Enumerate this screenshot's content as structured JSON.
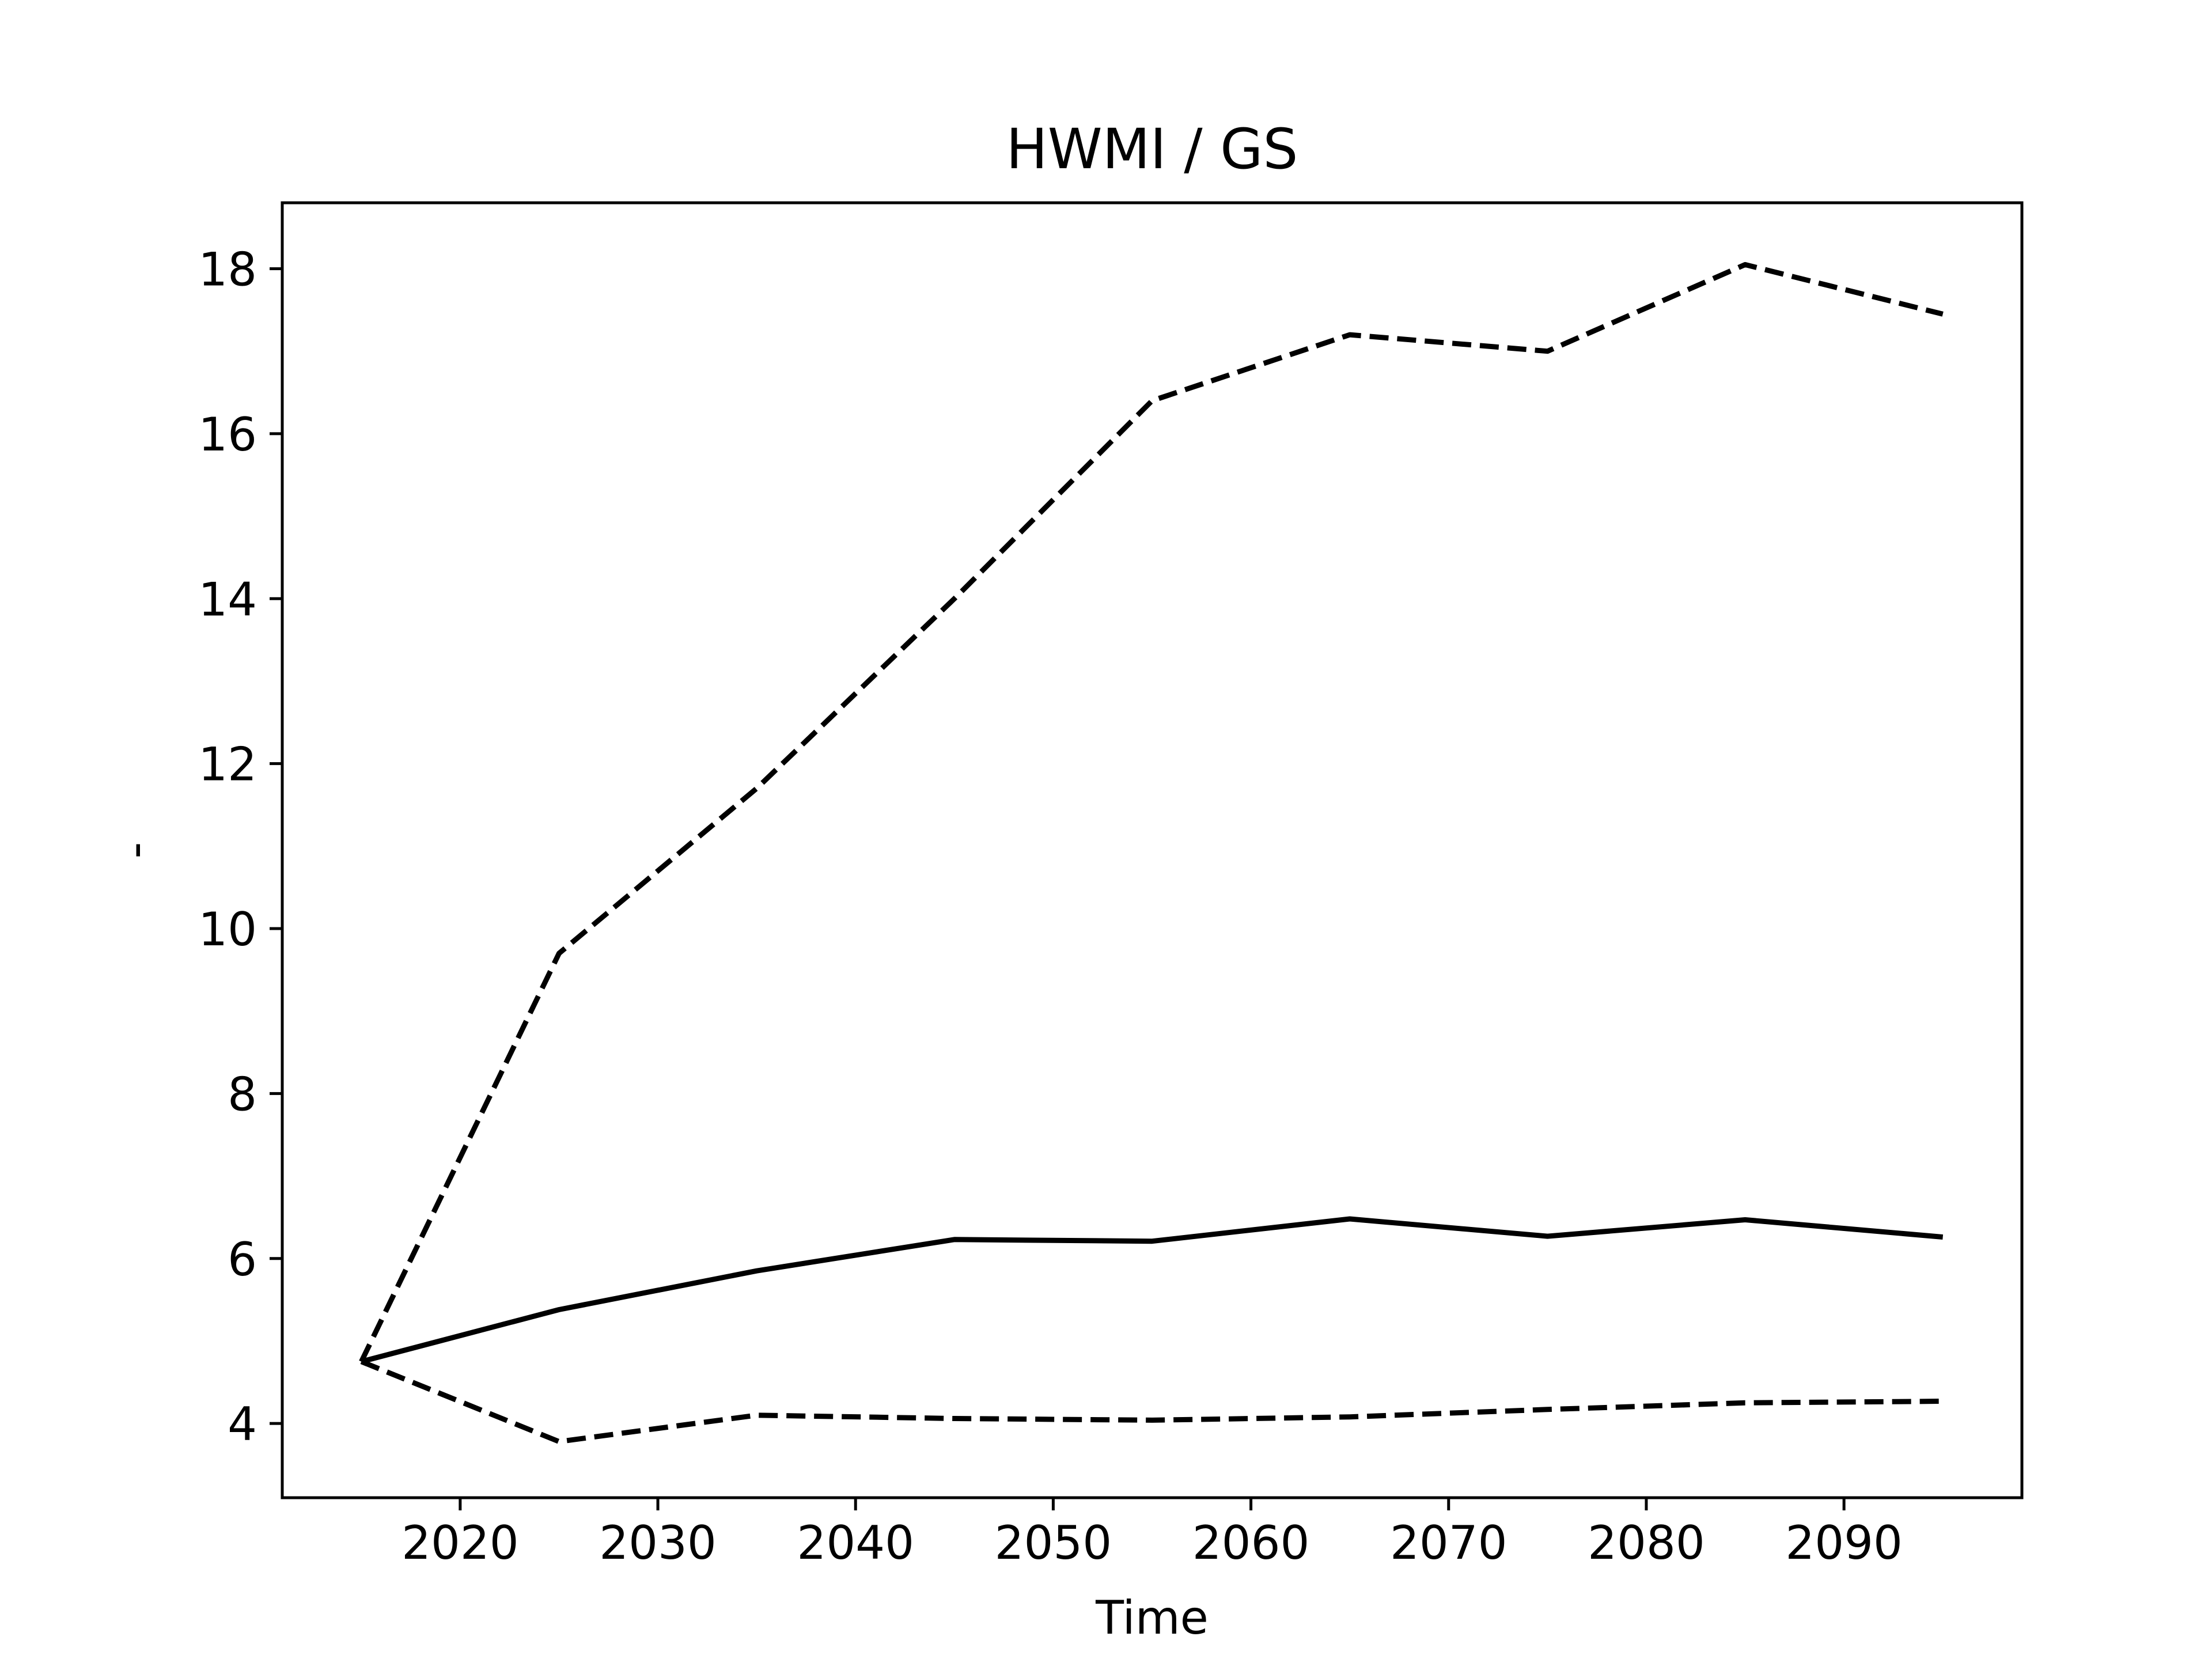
{
  "chart_data": {
    "type": "line",
    "title": "HWMI / GS",
    "xlabel": "Time",
    "ylabel": "-",
    "xlim": [
      2011,
      2099
    ],
    "ylim": [
      3.1,
      18.8
    ],
    "xticks": [
      2020,
      2030,
      2040,
      2050,
      2060,
      2070,
      2080,
      2090
    ],
    "yticks": [
      4,
      6,
      8,
      10,
      12,
      14,
      16,
      18
    ],
    "grid": false,
    "x": [
      2015,
      2025,
      2035,
      2045,
      2055,
      2065,
      2075,
      2085,
      2095
    ],
    "series": [
      {
        "style": "dashed",
        "color": "#000000",
        "values": [
          4.75,
          9.7,
          11.7,
          14.0,
          16.4,
          17.2,
          17.0,
          18.05,
          17.45
        ]
      },
      {
        "style": "solid",
        "color": "#000000",
        "values": [
          4.75,
          5.38,
          5.85,
          6.23,
          6.21,
          6.48,
          6.27,
          6.47,
          6.26
        ]
      },
      {
        "style": "dashed",
        "color": "#000000",
        "values": [
          4.75,
          3.78,
          4.1,
          4.06,
          4.04,
          4.08,
          4.17,
          4.25,
          4.27
        ]
      }
    ]
  }
}
